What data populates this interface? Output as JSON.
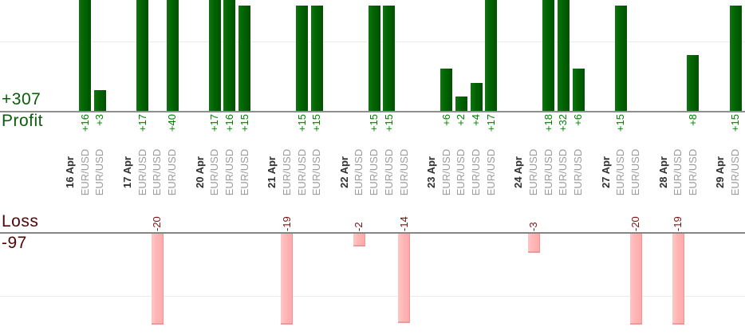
{
  "chart_data": {
    "type": "bar",
    "orientation": "vertical",
    "grid": "on",
    "profit_section": {
      "name": "Profit",
      "total": "+307"
    },
    "loss_section": {
      "name": "Loss",
      "total": "-97"
    },
    "gridlines": {
      "profit_value": 10,
      "loss_value": -10
    },
    "value_prefix_positive": "+",
    "groups": [
      {
        "date": "16 Apr",
        "trades": [
          {
            "pair": "EUR/USD",
            "value": 16
          },
          {
            "pair": "EUR/USD",
            "value": 3
          }
        ]
      },
      {
        "date": "17 Apr",
        "trades": [
          {
            "pair": "EUR/USD",
            "value": 17
          },
          {
            "pair": "EUR/USD",
            "value": -20
          },
          {
            "pair": "EUR/USD",
            "value": 40
          }
        ]
      },
      {
        "date": "20 Apr",
        "trades": [
          {
            "pair": "EUR/USD",
            "value": 17
          },
          {
            "pair": "EUR/USD",
            "value": 16
          },
          {
            "pair": "EUR/USD",
            "value": 15
          }
        ]
      },
      {
        "date": "21 Apr",
        "trades": [
          {
            "pair": "EUR/USD",
            "value": -19
          },
          {
            "pair": "EUR/USD",
            "value": 15
          },
          {
            "pair": "EUR/USD",
            "value": 15
          }
        ]
      },
      {
        "date": "22 Apr",
        "trades": [
          {
            "pair": "EUR/USD",
            "value": -2
          },
          {
            "pair": "EUR/USD",
            "value": 15
          },
          {
            "pair": "EUR/USD",
            "value": 15
          },
          {
            "pair": "EUR/USD",
            "value": -14
          }
        ]
      },
      {
        "date": "23 Apr",
        "trades": [
          {
            "pair": "EUR/USD",
            "value": 6
          },
          {
            "pair": "EUR/USD",
            "value": 2
          },
          {
            "pair": "EUR/USD",
            "value": 4
          },
          {
            "pair": "EUR/USD",
            "value": 17
          }
        ]
      },
      {
        "date": "24 Apr",
        "trades": [
          {
            "pair": "EUR/USD",
            "value": -3
          },
          {
            "pair": "EUR/USD",
            "value": 18
          },
          {
            "pair": "EUR/USD",
            "value": 32
          },
          {
            "pair": "EUR/USD",
            "value": 6
          }
        ]
      },
      {
        "date": "27 Apr",
        "trades": [
          {
            "pair": "EUR/USD",
            "value": 15
          },
          {
            "pair": "EUR/USD",
            "value": -20
          }
        ]
      },
      {
        "date": "28 Apr",
        "trades": [
          {
            "pair": "EUR/USD",
            "value": -19
          },
          {
            "pair": "EUR/USD",
            "value": 8
          }
        ]
      },
      {
        "date": "29 Apr",
        "trades": [
          {
            "pair": "EUR/USD",
            "value": 15
          }
        ]
      }
    ],
    "colors": {
      "profit_bar": "#006400",
      "loss_bar": "#ffb3b3",
      "profit_value_text": "#008000",
      "loss_value_text": "#7c1212",
      "profit_total_text": "#0b5c0b",
      "loss_total_text": "#4f0606",
      "date_text": "#2f2f2f",
      "pair_text": "#9b9b9b",
      "axis_line": "#8f8f8f",
      "grid_line": "#ececec"
    }
  }
}
